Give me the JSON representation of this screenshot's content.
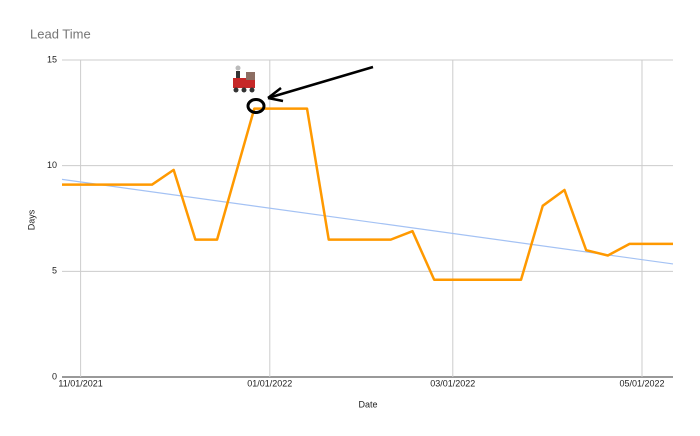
{
  "chart_data": {
    "type": "line",
    "title": "Lead Time",
    "x_label": "Date",
    "y_label": "Days",
    "x": [
      "2021-10-26",
      "2021-11-24",
      "2021-12-01",
      "2021-12-08",
      "2021-12-15",
      "2021-12-27",
      "2022-01-13",
      "2022-01-20",
      "2022-02-09",
      "2022-02-16",
      "2022-02-23",
      "2022-03-23",
      "2022-03-30",
      "2022-04-06",
      "2022-04-13",
      "2022-04-20",
      "2022-04-27",
      "2022-05-11"
    ],
    "series": [
      {
        "color": "#ff9900",
        "values": [
          9.1,
          9.1,
          9.8,
          6.5,
          6.5,
          12.7,
          12.7,
          6.5,
          6.5,
          6.9,
          4.6,
          4.6,
          8.1,
          8.85,
          6.0,
          5.75,
          6.3,
          6.3
        ]
      }
    ],
    "trendline": {
      "color": "#a4c2f4",
      "x": [
        "2021-10-26",
        "2022-05-11"
      ],
      "values": [
        9.35,
        5.35
      ]
    },
    "xlim": [
      "2021-10-26",
      "2022-05-11"
    ],
    "xticks": [
      {
        "value": "2021-11-01",
        "label": "11/01/2021"
      },
      {
        "value": "2022-01-01",
        "label": "01/01/2022"
      },
      {
        "value": "2022-03-01",
        "label": "03/01/2022"
      },
      {
        "value": "2022-05-01",
        "label": "05/01/2022"
      }
    ],
    "ylim": [
      0,
      15
    ],
    "yticks": [
      0,
      5,
      10,
      15
    ],
    "grid": true
  }
}
